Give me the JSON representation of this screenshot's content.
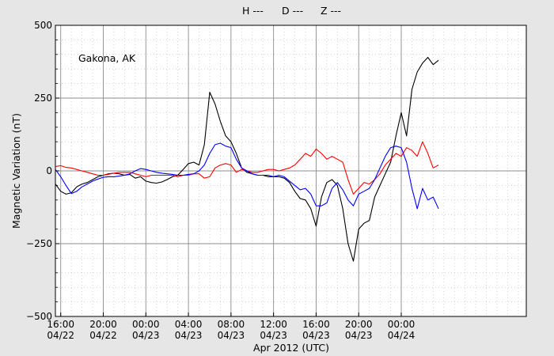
{
  "chart_data": {
    "type": "line",
    "xlabel": "Apr 2012 (UTC)",
    "ylabel": "Magnetic Variation (nT)",
    "annotation": "Gakona, AK",
    "ylim": [
      -500,
      500
    ],
    "xlim": [
      "2012-04-22 15:30",
      "2012-04-24 11:45"
    ],
    "y_ticks": [
      {
        "value": 500,
        "label": "500"
      },
      {
        "value": 250,
        "label": "250"
      },
      {
        "value": 0,
        "label": "0"
      },
      {
        "value": -250,
        "label": "−250"
      },
      {
        "value": -500,
        "label": "−500"
      }
    ],
    "x_ticks": [
      {
        "time": "2012-04-22 16:00",
        "line1": "16:00",
        "line2": "04/22"
      },
      {
        "time": "2012-04-22 20:00",
        "line1": "20:00",
        "line2": "04/22"
      },
      {
        "time": "2012-04-23 00:00",
        "line1": "00:00",
        "line2": "04/23"
      },
      {
        "time": "2012-04-23 04:00",
        "line1": "04:00",
        "line2": "04/23"
      },
      {
        "time": "2012-04-23 08:00",
        "line1": "08:00",
        "line2": "04/23"
      },
      {
        "time": "2012-04-23 12:00",
        "line1": "12:00",
        "line2": "04/23"
      },
      {
        "time": "2012-04-23 16:00",
        "line1": "16:00",
        "line2": "04/23"
      },
      {
        "time": "2012-04-23 20:00",
        "line1": "20:00",
        "line2": "04/23"
      },
      {
        "time": "2012-04-24 00:00",
        "line1": "00:00",
        "line2": "04/24"
      }
    ],
    "grid": true,
    "legend_position": "top-center",
    "series": [
      {
        "name": "H ---",
        "color": "#000000",
        "points": [
          [
            "2012-04-22 15:30",
            -45
          ],
          [
            "2012-04-22 16:00",
            -70
          ],
          [
            "2012-04-22 16:30",
            -80
          ],
          [
            "2012-04-22 17:00",
            -75
          ],
          [
            "2012-04-22 17:30",
            -55
          ],
          [
            "2012-04-22 18:00",
            -45
          ],
          [
            "2012-04-22 18:30",
            -40
          ],
          [
            "2012-04-22 19:00",
            -30
          ],
          [
            "2012-04-22 19:30",
            -20
          ],
          [
            "2012-04-22 20:00",
            -15
          ],
          [
            "2012-04-22 20:30",
            -10
          ],
          [
            "2012-04-22 21:00",
            -8
          ],
          [
            "2012-04-22 21:30",
            -10
          ],
          [
            "2012-04-22 22:00",
            -15
          ],
          [
            "2012-04-22 22:30",
            -12
          ],
          [
            "2012-04-22 23:00",
            -25
          ],
          [
            "2012-04-22 23:30",
            -20
          ],
          [
            "2012-04-23 00:00",
            -35
          ],
          [
            "2012-04-23 00:30",
            -40
          ],
          [
            "2012-04-23 01:00",
            -42
          ],
          [
            "2012-04-23 01:30",
            -38
          ],
          [
            "2012-04-23 02:00",
            -30
          ],
          [
            "2012-04-23 02:30",
            -20
          ],
          [
            "2012-04-23 03:00",
            -15
          ],
          [
            "2012-04-23 03:30",
            5
          ],
          [
            "2012-04-23 04:00",
            25
          ],
          [
            "2012-04-23 04:30",
            30
          ],
          [
            "2012-04-23 05:00",
            20
          ],
          [
            "2012-04-23 05:30",
            90
          ],
          [
            "2012-04-23 06:00",
            270
          ],
          [
            "2012-04-23 06:30",
            230
          ],
          [
            "2012-04-23 07:00",
            170
          ],
          [
            "2012-04-23 07:30",
            120
          ],
          [
            "2012-04-23 08:00",
            100
          ],
          [
            "2012-04-23 08:30",
            60
          ],
          [
            "2012-04-23 09:00",
            10
          ],
          [
            "2012-04-23 09:30",
            -5
          ],
          [
            "2012-04-23 10:00",
            -10
          ],
          [
            "2012-04-23 10:30",
            -15
          ],
          [
            "2012-04-23 11:00",
            -15
          ],
          [
            "2012-04-23 11:30",
            -20
          ],
          [
            "2012-04-23 12:00",
            -20
          ],
          [
            "2012-04-23 12:30",
            -20
          ],
          [
            "2012-04-23 13:00",
            -25
          ],
          [
            "2012-04-23 13:30",
            -40
          ],
          [
            "2012-04-23 14:00",
            -70
          ],
          [
            "2012-04-23 14:30",
            -95
          ],
          [
            "2012-04-23 15:00",
            -100
          ],
          [
            "2012-04-23 15:30",
            -130
          ],
          [
            "2012-04-23 16:00",
            -190
          ],
          [
            "2012-04-23 16:30",
            -90
          ],
          [
            "2012-04-23 17:00",
            -40
          ],
          [
            "2012-04-23 17:30",
            -30
          ],
          [
            "2012-04-23 18:00",
            -50
          ],
          [
            "2012-04-23 18:30",
            -130
          ],
          [
            "2012-04-23 19:00",
            -250
          ],
          [
            "2012-04-23 19:30",
            -310
          ],
          [
            "2012-04-23 20:00",
            -200
          ],
          [
            "2012-04-23 20:30",
            -180
          ],
          [
            "2012-04-23 21:00",
            -170
          ],
          [
            "2012-04-23 21:30",
            -90
          ],
          [
            "2012-04-23 22:00",
            -50
          ],
          [
            "2012-04-23 22:30",
            -10
          ],
          [
            "2012-04-23 23:00",
            30
          ],
          [
            "2012-04-23 23:30",
            120
          ],
          [
            "2012-04-24 00:00",
            200
          ],
          [
            "2012-04-24 00:30",
            120
          ],
          [
            "2012-04-24 01:00",
            280
          ],
          [
            "2012-04-24 01:30",
            340
          ],
          [
            "2012-04-24 02:00",
            370
          ],
          [
            "2012-04-24 02:30",
            390
          ],
          [
            "2012-04-24 03:00",
            365
          ],
          [
            "2012-04-24 03:30",
            380
          ]
        ]
      },
      {
        "name": "D ---",
        "color": "#ff0000",
        "points": [
          [
            "2012-04-22 15:30",
            15
          ],
          [
            "2012-04-22 16:00",
            18
          ],
          [
            "2012-04-22 16:30",
            12
          ],
          [
            "2012-04-22 17:00",
            10
          ],
          [
            "2012-04-22 17:30",
            5
          ],
          [
            "2012-04-22 18:00",
            0
          ],
          [
            "2012-04-22 18:30",
            -5
          ],
          [
            "2012-04-22 19:00",
            -10
          ],
          [
            "2012-04-22 19:30",
            -15
          ],
          [
            "2012-04-22 20:00",
            -15
          ],
          [
            "2012-04-22 20:30",
            -12
          ],
          [
            "2012-04-22 21:00",
            -8
          ],
          [
            "2012-04-22 21:30",
            -5
          ],
          [
            "2012-04-22 22:00",
            -5
          ],
          [
            "2012-04-22 22:30",
            -5
          ],
          [
            "2012-04-22 23:00",
            -10
          ],
          [
            "2012-04-22 23:30",
            -15
          ],
          [
            "2012-04-23 00:00",
            -20
          ],
          [
            "2012-04-23 00:30",
            -15
          ],
          [
            "2012-04-23 01:00",
            -15
          ],
          [
            "2012-04-23 01:30",
            -15
          ],
          [
            "2012-04-23 02:00",
            -15
          ],
          [
            "2012-04-23 02:30",
            -15
          ],
          [
            "2012-04-23 03:00",
            -20
          ],
          [
            "2012-04-23 03:30",
            -15
          ],
          [
            "2012-04-23 04:00",
            -15
          ],
          [
            "2012-04-23 04:30",
            -10
          ],
          [
            "2012-04-23 05:00",
            -10
          ],
          [
            "2012-04-23 05:30",
            -25
          ],
          [
            "2012-04-23 06:00",
            -20
          ],
          [
            "2012-04-23 06:30",
            10
          ],
          [
            "2012-04-23 07:00",
            20
          ],
          [
            "2012-04-23 07:30",
            25
          ],
          [
            "2012-04-23 08:00",
            20
          ],
          [
            "2012-04-23 08:30",
            -5
          ],
          [
            "2012-04-23 09:00",
            5
          ],
          [
            "2012-04-23 09:30",
            0
          ],
          [
            "2012-04-23 10:00",
            -5
          ],
          [
            "2012-04-23 10:30",
            -5
          ],
          [
            "2012-04-23 11:00",
            0
          ],
          [
            "2012-04-23 11:30",
            5
          ],
          [
            "2012-04-23 12:00",
            5
          ],
          [
            "2012-04-23 12:30",
            0
          ],
          [
            "2012-04-23 13:00",
            5
          ],
          [
            "2012-04-23 13:30",
            10
          ],
          [
            "2012-04-23 14:00",
            20
          ],
          [
            "2012-04-23 14:30",
            40
          ],
          [
            "2012-04-23 15:00",
            60
          ],
          [
            "2012-04-23 15:30",
            50
          ],
          [
            "2012-04-23 16:00",
            75
          ],
          [
            "2012-04-23 16:30",
            60
          ],
          [
            "2012-04-23 17:00",
            40
          ],
          [
            "2012-04-23 17:30",
            50
          ],
          [
            "2012-04-23 18:00",
            40
          ],
          [
            "2012-04-23 18:30",
            30
          ],
          [
            "2012-04-23 19:00",
            -30
          ],
          [
            "2012-04-23 19:30",
            -80
          ],
          [
            "2012-04-23 20:00",
            -60
          ],
          [
            "2012-04-23 20:30",
            -40
          ],
          [
            "2012-04-23 21:00",
            -45
          ],
          [
            "2012-04-23 21:30",
            -30
          ],
          [
            "2012-04-23 22:00",
            -10
          ],
          [
            "2012-04-23 22:30",
            20
          ],
          [
            "2012-04-23 23:00",
            40
          ],
          [
            "2012-04-23 23:30",
            60
          ],
          [
            "2012-04-24 00:00",
            50
          ],
          [
            "2012-04-24 00:30",
            80
          ],
          [
            "2012-04-24 01:00",
            70
          ],
          [
            "2012-04-24 01:30",
            50
          ],
          [
            "2012-04-24 02:00",
            100
          ],
          [
            "2012-04-24 02:30",
            60
          ],
          [
            "2012-04-24 03:00",
            10
          ],
          [
            "2012-04-24 03:30",
            20
          ]
        ]
      },
      {
        "name": "Z ---",
        "color": "#0000ff",
        "points": [
          [
            "2012-04-22 15:30",
            5
          ],
          [
            "2012-04-22 16:00",
            -20
          ],
          [
            "2012-04-22 16:30",
            -50
          ],
          [
            "2012-04-22 17:00",
            -78
          ],
          [
            "2012-04-22 17:30",
            -70
          ],
          [
            "2012-04-22 18:00",
            -55
          ],
          [
            "2012-04-22 18:30",
            -45
          ],
          [
            "2012-04-22 19:00",
            -35
          ],
          [
            "2012-04-22 19:30",
            -28
          ],
          [
            "2012-04-22 20:00",
            -22
          ],
          [
            "2012-04-22 20:30",
            -20
          ],
          [
            "2012-04-22 21:00",
            -20
          ],
          [
            "2012-04-22 21:30",
            -18
          ],
          [
            "2012-04-22 22:00",
            -15
          ],
          [
            "2012-04-22 22:30",
            -10
          ],
          [
            "2012-04-22 23:00",
            0
          ],
          [
            "2012-04-22 23:30",
            8
          ],
          [
            "2012-04-23 00:00",
            5
          ],
          [
            "2012-04-23 00:30",
            0
          ],
          [
            "2012-04-23 01:00",
            -5
          ],
          [
            "2012-04-23 01:30",
            -8
          ],
          [
            "2012-04-23 02:00",
            -10
          ],
          [
            "2012-04-23 02:30",
            -12
          ],
          [
            "2012-04-23 03:00",
            -15
          ],
          [
            "2012-04-23 03:30",
            -15
          ],
          [
            "2012-04-23 04:00",
            -12
          ],
          [
            "2012-04-23 04:30",
            -10
          ],
          [
            "2012-04-23 05:00",
            0
          ],
          [
            "2012-04-23 05:30",
            20
          ],
          [
            "2012-04-23 06:00",
            60
          ],
          [
            "2012-04-23 06:30",
            90
          ],
          [
            "2012-04-23 07:00",
            95
          ],
          [
            "2012-04-23 07:30",
            85
          ],
          [
            "2012-04-23 08:00",
            80
          ],
          [
            "2012-04-23 08:30",
            40
          ],
          [
            "2012-04-23 09:00",
            10
          ],
          [
            "2012-04-23 09:30",
            0
          ],
          [
            "2012-04-23 10:00",
            -10
          ],
          [
            "2012-04-23 10:30",
            -15
          ],
          [
            "2012-04-23 11:00",
            -15
          ],
          [
            "2012-04-23 11:30",
            -15
          ],
          [
            "2012-04-23 12:00",
            -20
          ],
          [
            "2012-04-23 12:30",
            -15
          ],
          [
            "2012-04-23 13:00",
            -20
          ],
          [
            "2012-04-23 13:30",
            -35
          ],
          [
            "2012-04-23 14:00",
            -50
          ],
          [
            "2012-04-23 14:30",
            -65
          ],
          [
            "2012-04-23 15:00",
            -60
          ],
          [
            "2012-04-23 15:30",
            -80
          ],
          [
            "2012-04-23 16:00",
            -120
          ],
          [
            "2012-04-23 16:30",
            -120
          ],
          [
            "2012-04-23 17:00",
            -110
          ],
          [
            "2012-04-23 17:30",
            -60
          ],
          [
            "2012-04-23 18:00",
            -40
          ],
          [
            "2012-04-23 18:30",
            -65
          ],
          [
            "2012-04-23 19:00",
            -100
          ],
          [
            "2012-04-23 19:30",
            -120
          ],
          [
            "2012-04-23 20:00",
            -80
          ],
          [
            "2012-04-23 20:30",
            -70
          ],
          [
            "2012-04-23 21:00",
            -60
          ],
          [
            "2012-04-23 21:30",
            -30
          ],
          [
            "2012-04-23 22:00",
            10
          ],
          [
            "2012-04-23 22:30",
            50
          ],
          [
            "2012-04-23 23:00",
            80
          ],
          [
            "2012-04-23 23:30",
            85
          ],
          [
            "2012-04-24 00:00",
            80
          ],
          [
            "2012-04-24 00:30",
            30
          ],
          [
            "2012-04-24 01:00",
            -60
          ],
          [
            "2012-04-24 01:30",
            -130
          ],
          [
            "2012-04-24 02:00",
            -60
          ],
          [
            "2012-04-24 02:30",
            -100
          ],
          [
            "2012-04-24 03:00",
            -90
          ],
          [
            "2012-04-24 03:30",
            -130
          ]
        ]
      }
    ]
  }
}
